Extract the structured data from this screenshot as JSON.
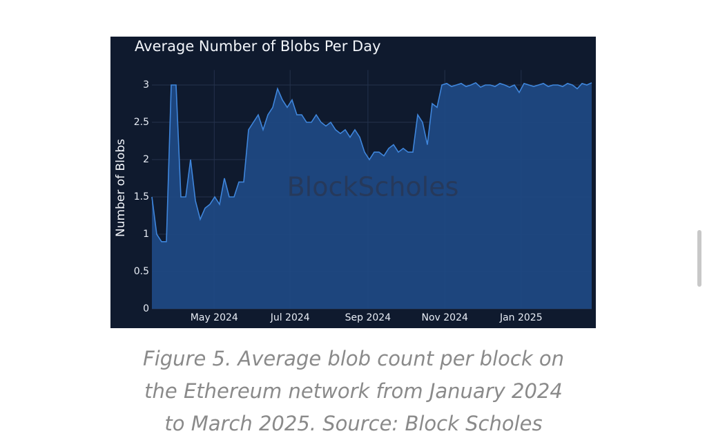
{
  "chart_data": {
    "type": "area",
    "title": "Average Number of Blobs Per Day",
    "y_label": "Number of Blobs",
    "watermark": "BlockScholes",
    "color": "#3f86dc",
    "fill": "#1f4a86",
    "grid": true,
    "values": [
      1.5,
      1.0,
      0.9,
      0.9,
      3.0,
      3.0,
      1.5,
      1.5,
      2.0,
      1.45,
      1.2,
      1.35,
      1.4,
      1.5,
      1.4,
      1.75,
      1.5,
      1.5,
      1.7,
      1.7,
      2.4,
      2.5,
      2.6,
      2.4,
      2.6,
      2.7,
      2.95,
      2.8,
      2.7,
      2.8,
      2.6,
      2.6,
      2.5,
      2.5,
      2.6,
      2.5,
      2.45,
      2.5,
      2.4,
      2.35,
      2.4,
      2.3,
      2.4,
      2.3,
      2.1,
      2.0,
      2.1,
      2.1,
      2.05,
      2.15,
      2.2,
      2.1,
      2.15,
      2.1,
      2.1,
      2.6,
      2.5,
      2.2,
      2.75,
      2.7,
      3.0,
      3.02,
      2.98,
      3.0,
      3.02,
      2.98,
      3.0,
      3.03,
      2.97,
      3.0,
      3.0,
      2.98,
      3.02,
      3.0,
      2.97,
      3.0,
      2.9,
      3.02,
      3.0,
      2.98,
      3.0,
      3.02,
      2.98,
      3.0,
      3.0,
      2.98,
      3.02,
      3.0,
      2.95,
      3.02,
      3.0,
      3.03
    ],
    "xlim": [
      0,
      91
    ],
    "xticks": [
      {
        "value": 12.9,
        "label": "May 2024"
      },
      {
        "value": 28.6,
        "label": "Jul 2024"
      },
      {
        "value": 44.7,
        "label": "Sep 2024"
      },
      {
        "value": 60.6,
        "label": "Nov 2024"
      },
      {
        "value": 76.4,
        "label": "Jan 2025"
      }
    ],
    "ylim": [
      0,
      3.2
    ],
    "yticks": [
      0,
      0.5,
      1,
      1.5,
      2,
      2.5,
      3
    ]
  },
  "caption": [
    "Figure 5. Average blob count per block on",
    "the Ethereum network from January 2024",
    "to March 2025. Source: Block Scholes"
  ]
}
